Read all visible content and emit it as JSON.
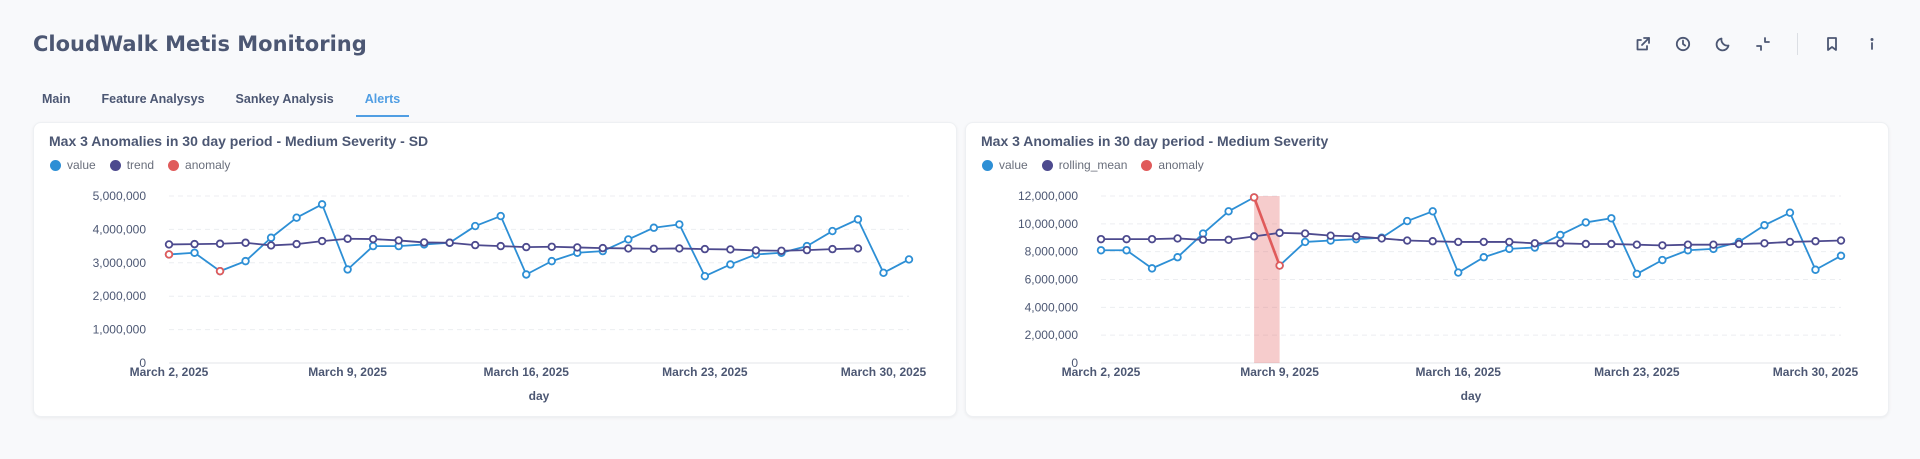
{
  "dashboard": {
    "title": "CloudWalk Metis Monitoring"
  },
  "toolbar": {
    "icons": [
      "share-icon",
      "clock-icon",
      "moon-icon",
      "collapse-icon",
      "bookmark-icon",
      "info-icon"
    ]
  },
  "tabs": [
    {
      "label": "Main",
      "active": false
    },
    {
      "label": "Feature Analysys",
      "active": false
    },
    {
      "label": "Sankey Analysis",
      "active": false
    },
    {
      "label": "Alerts",
      "active": true
    }
  ],
  "colors": {
    "value": "#2d8fd5",
    "trend": "#4d4a8e",
    "anomaly": "#e05b5b",
    "accent": "#509ee3"
  },
  "cards": [
    {
      "title": "Max 3 Anomalies in 30 day period - Medium Severity - SD",
      "legend": [
        "value",
        "trend",
        "anomaly"
      ]
    },
    {
      "title": "Max 3 Anomalies in 30 day period - Medium Severity",
      "legend": [
        "value",
        "rolling_mean",
        "anomaly"
      ]
    }
  ],
  "chart_data": [
    {
      "type": "line",
      "title": "Max 3 Anomalies in 30 day period - Medium Severity - SD",
      "xlabel": "day",
      "ylabel": "",
      "x_ticks": [
        "March 2, 2025",
        "March 9, 2025",
        "March 16, 2025",
        "March 23, 2025",
        "March 30, 2025"
      ],
      "y_ticks": [
        "0",
        "1,000,000",
        "2,000,000",
        "3,000,000",
        "4,000,000",
        "5,000,000"
      ],
      "ylim": [
        0,
        5000000
      ],
      "x_days": [
        2,
        31
      ],
      "grid": true,
      "legend_position": "top-left",
      "series": [
        {
          "name": "value",
          "x_start": 2,
          "values": [
            3250000,
            3300000,
            2750000,
            3050000,
            3750000,
            4350000,
            4750000,
            2800000,
            3500000,
            3500000,
            3550000,
            3600000,
            4100000,
            4400000,
            2650000,
            3050000,
            3300000,
            3350000,
            3700000,
            4050000,
            4150000,
            2600000,
            2950000,
            3250000,
            3300000,
            3500000,
            3950000,
            4300000,
            2700000,
            3100000
          ]
        },
        {
          "name": "trend",
          "x_start": 2,
          "values": [
            3550000,
            3560000,
            3570000,
            3600000,
            3520000,
            3560000,
            3650000,
            3720000,
            3710000,
            3670000,
            3610000,
            3600000,
            3530000,
            3500000,
            3470000,
            3480000,
            3460000,
            3440000,
            3430000,
            3420000,
            3430000,
            3410000,
            3400000,
            3370000,
            3360000,
            3380000,
            3410000,
            3430000
          ]
        },
        {
          "name": "anomaly",
          "points": [
            [
              2,
              3250000
            ],
            [
              4,
              2750000
            ]
          ]
        }
      ],
      "bands": []
    },
    {
      "type": "line",
      "title": "Max 3 Anomalies in 30 day period - Medium Severity",
      "xlabel": "day",
      "ylabel": "",
      "x_ticks": [
        "March 2, 2025",
        "March 9, 2025",
        "March 16, 2025",
        "March 23, 2025",
        "March 30, 2025"
      ],
      "y_ticks": [
        "0",
        "2,000,000",
        "4,000,000",
        "6,000,000",
        "8,000,000",
        "10,000,000",
        "12,000,000"
      ],
      "ylim": [
        0,
        12000000
      ],
      "x_days": [
        2,
        31
      ],
      "grid": true,
      "legend_position": "top-left",
      "series": [
        {
          "name": "value",
          "x_start": 2,
          "values": [
            8100000,
            8100000,
            6800000,
            7600000,
            9300000,
            10900000,
            11900000,
            7000000,
            8700000,
            8800000,
            8900000,
            9000000,
            10200000,
            10900000,
            6500000,
            7600000,
            8200000,
            8300000,
            9200000,
            10100000,
            10400000,
            6400000,
            7400000,
            8100000,
            8200000,
            8700000,
            9900000,
            10800000,
            6700000,
            7700000
          ]
        },
        {
          "name": "rolling_mean",
          "x_start": 2,
          "values": [
            8900000,
            8900000,
            8900000,
            8950000,
            8850000,
            8850000,
            9100000,
            9350000,
            9300000,
            9150000,
            9100000,
            8950000,
            8800000,
            8750000,
            8700000,
            8700000,
            8700000,
            8600000,
            8600000,
            8550000,
            8550000,
            8500000,
            8450000,
            8500000,
            8500000,
            8550000,
            8600000,
            8700000,
            8750000,
            8800000
          ]
        },
        {
          "name": "anomaly",
          "points": [
            [
              8,
              11900000
            ],
            [
              9,
              7000000
            ]
          ]
        }
      ],
      "bands": [
        [
          8,
          9
        ]
      ]
    }
  ]
}
